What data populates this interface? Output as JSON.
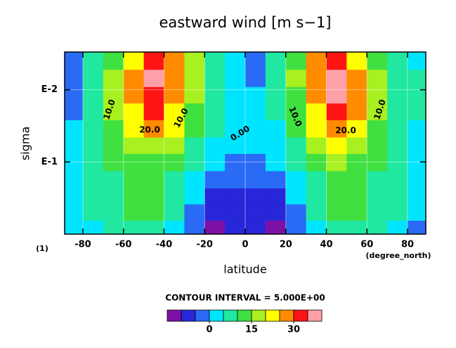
{
  "chart_data": {
    "type": "contour",
    "title": "eastward wind [m s−1]",
    "x_label": "latitude",
    "y_label": "sigma",
    "x_unit": "(degree_north)",
    "y_unit": "(1)",
    "contour_interval": "CONTOUR INTERVAL = 5.000E+00",
    "contour_labels": [
      "10.0",
      "20.0",
      "10.0",
      "0.00",
      "10.0",
      "20.0",
      "10.0"
    ],
    "x": [
      -85,
      -75,
      -65,
      -55,
      -45,
      -35,
      -25,
      -15,
      -5,
      5,
      15,
      25,
      35,
      45,
      55,
      65,
      75,
      85
    ],
    "y": [
      0.004,
      0.007,
      0.012,
      0.02,
      0.035,
      0.06,
      0.1,
      0.18,
      0.3,
      0.5,
      0.85
    ],
    "values": [
      [
        -2,
        7,
        14,
        22,
        32,
        25,
        15,
        8,
        4,
        -2,
        6,
        14,
        25,
        34,
        24,
        14,
        8,
        4
      ],
      [
        -2,
        8,
        16,
        25,
        36,
        27,
        16,
        8,
        3,
        -1,
        7,
        15,
        26,
        37,
        25,
        15,
        8,
        5
      ],
      [
        -2,
        8,
        16,
        26,
        34,
        26,
        15,
        7,
        3,
        2,
        6,
        14,
        25,
        36,
        26,
        16,
        9,
        5
      ],
      [
        -1,
        8,
        15,
        24,
        31,
        24,
        13,
        6,
        3,
        3,
        5,
        13,
        24,
        32,
        25,
        15,
        9,
        5
      ],
      [
        2,
        7,
        14,
        21,
        25,
        20,
        11,
        5,
        3,
        3,
        4,
        11,
        20,
        26,
        22,
        14,
        8,
        4
      ],
      [
        3,
        6,
        12,
        17,
        19,
        15,
        8,
        3,
        1,
        1,
        2,
        8,
        15,
        20,
        17,
        12,
        7,
        4
      ],
      [
        3,
        6,
        11,
        14,
        14,
        11,
        5,
        1,
        -1,
        -1,
        0,
        5,
        11,
        15,
        14,
        11,
        6,
        3
      ],
      [
        3,
        5,
        9,
        12,
        12,
        8,
        3,
        -2,
        -4,
        -4,
        -2,
        3,
        8,
        13,
        13,
        9,
        5,
        3
      ],
      [
        3,
        5,
        8,
        11,
        11,
        7,
        1,
        -6,
        -7,
        -7,
        -6,
        1,
        7,
        11,
        11,
        8,
        5,
        2
      ],
      [
        3,
        5,
        7,
        10,
        10,
        6,
        -2,
        -9,
        -8,
        -9,
        -9,
        -2,
        6,
        10,
        10,
        7,
        5,
        1
      ],
      [
        3,
        4,
        6,
        9,
        9,
        4,
        -3,
        -11,
        -8,
        -8,
        -11,
        -3,
        4,
        9,
        9,
        6,
        4,
        -2
      ]
    ],
    "levels": [
      -10,
      -5,
      0,
      5,
      10,
      15,
      20,
      25,
      30,
      35
    ],
    "colors": [
      "#7d11a5",
      "#2727d9",
      "#2a6bf5",
      "#00e5ff",
      "#20e8a0",
      "#40e040",
      "#a8f020",
      "#ffff00",
      "#ff8c00",
      "#ff1414",
      "#ffa0a8"
    ],
    "colorbar_ticks": [
      0,
      15,
      30
    ],
    "xlim": [
      -89,
      89
    ],
    "xticks": [
      -80,
      -60,
      -40,
      -20,
      0,
      20,
      40,
      60,
      80
    ],
    "ylim": [
      1,
      0.003
    ],
    "y_log": true,
    "yticks": [
      {
        "value": 0.01,
        "label": "E-2"
      },
      {
        "value": 0.1,
        "label": "E-1"
      }
    ],
    "grid": true
  }
}
